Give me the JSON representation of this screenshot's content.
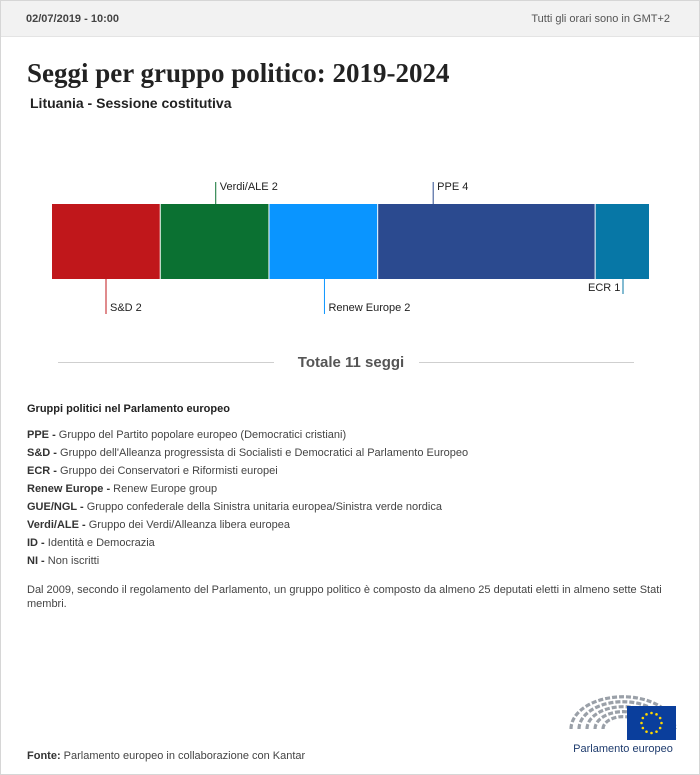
{
  "header": {
    "datetime": "02/07/2019 - 10:00",
    "timezone": "Tutti gli orari sono in GMT+2"
  },
  "title": "Seggi per gruppo politico: 2019-2024",
  "subtitle": "Lituania - Sessione costitutiva",
  "chart_data": {
    "type": "bar",
    "orientation": "horizontal-stacked",
    "categories": [
      "S&D",
      "Verdi/ALE",
      "Renew Europe",
      "PPE",
      "ECR"
    ],
    "values": [
      2,
      2,
      2,
      4,
      1
    ],
    "labels": [
      "S&D 2",
      "Verdi/ALE 2",
      "Renew Europe 2",
      "PPE 4",
      "ECR 1"
    ],
    "label_side": [
      "below",
      "above",
      "below",
      "above",
      "below"
    ],
    "colors": [
      "#c0171b",
      "#0b7132",
      "#0a95ff",
      "#2b4a8f",
      "#0777a6"
    ],
    "total": 11
  },
  "total_label": "Totale 11 seggi",
  "legend": {
    "title": "Gruppi politici nel Parlamento europeo",
    "items": [
      {
        "abbr": "PPE -",
        "desc": "Gruppo del Partito popolare europeo (Democratici cristiani)"
      },
      {
        "abbr": "S&D -",
        "desc": "Gruppo dell'Alleanza progressista di Socialisti e Democratici al Parlamento Europeo"
      },
      {
        "abbr": "ECR -",
        "desc": "Gruppo dei Conservatori e Riformisti europei"
      },
      {
        "abbr": "Renew Europe -",
        "desc": "Renew Europe group"
      },
      {
        "abbr": "GUE/NGL -",
        "desc": "Gruppo confederale della Sinistra unitaria europea/Sinistra verde nordica"
      },
      {
        "abbr": "Verdi/ALE -",
        "desc": "Gruppo dei Verdi/Alleanza libera europea"
      },
      {
        "abbr": "ID -",
        "desc": "Identità e Democrazia"
      },
      {
        "abbr": "NI -",
        "desc": "Non iscritti"
      }
    ]
  },
  "note": "Dal 2009, secondo il regolamento del Parlamento, un gruppo politico è composto da almeno 25 deputati eletti in almeno sette Stati membri.",
  "source": {
    "label": "Fonte:",
    "text": "Parlamento europeo in collaborazione con Kantar"
  },
  "logo": {
    "text": "Parlamento europeo",
    "icon": "european-parliament-logo",
    "flag_color": "#0a3e9c",
    "star_color": "#ffd700",
    "arc_color": "#9aa0a8"
  }
}
